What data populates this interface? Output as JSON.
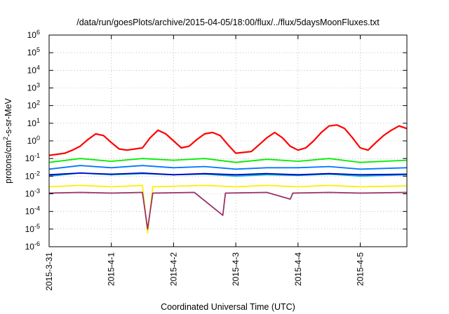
{
  "chart_data": {
    "type": "line",
    "title": "/data/run/goesPlots/archive/2015-04-05/18:00/flux/../flux/5daysMoonFluxes.txt",
    "xlabel": "Coordinated Universal Time (UTC)",
    "ylabel": {
      "base": "protons/cm",
      "sup": "2",
      "rest": "-s-sr-MeV"
    },
    "y_scale": "log",
    "ylim": [
      1e-06,
      1000000.0
    ],
    "y_tick_exponents": [
      -6,
      -5,
      -4,
      -3,
      -2,
      -1,
      0,
      1,
      2,
      3,
      4,
      5,
      6
    ],
    "y_tick_base": "10",
    "xlim": [
      "2015-03-31T00:00",
      "2015-04-05T18:00"
    ],
    "x_tick_labels": [
      "2015-3-31",
      "2015-4-1",
      "2015-4-2",
      "2015-4-3",
      "2015-4-4",
      "2015-4-5"
    ],
    "grid": true,
    "legend": "none",
    "series": [
      {
        "color": "#ff0000",
        "values": [
          [
            "2015-03-31T00:00",
            0.15
          ],
          [
            "2015-03-31T06:00",
            0.2
          ],
          [
            "2015-03-31T09:00",
            0.3
          ],
          [
            "2015-03-31T12:00",
            0.5
          ],
          [
            "2015-03-31T15:00",
            1.2
          ],
          [
            "2015-03-31T18:00",
            2.5
          ],
          [
            "2015-03-31T21:00",
            2.0
          ],
          [
            "2015-04-01T00:00",
            0.8
          ],
          [
            "2015-04-01T03:00",
            0.35
          ],
          [
            "2015-04-01T06:00",
            0.3
          ],
          [
            "2015-04-01T12:00",
            0.4
          ],
          [
            "2015-04-01T15:00",
            1.5
          ],
          [
            "2015-04-01T18:00",
            4.0
          ],
          [
            "2015-04-01T21:00",
            2.5
          ],
          [
            "2015-04-02T00:00",
            1.0
          ],
          [
            "2015-04-02T03:00",
            0.4
          ],
          [
            "2015-04-02T06:00",
            0.5
          ],
          [
            "2015-04-02T09:00",
            1.2
          ],
          [
            "2015-04-02T12:00",
            2.5
          ],
          [
            "2015-04-02T15:00",
            3.0
          ],
          [
            "2015-04-02T18:00",
            2.0
          ],
          [
            "2015-04-02T21:00",
            0.6
          ],
          [
            "2015-04-03T00:00",
            0.2
          ],
          [
            "2015-04-03T06:00",
            0.25
          ],
          [
            "2015-04-03T09:00",
            0.6
          ],
          [
            "2015-04-03T12:00",
            1.5
          ],
          [
            "2015-04-03T15:00",
            3.0
          ],
          [
            "2015-04-03T18:00",
            1.5
          ],
          [
            "2015-04-03T21:00",
            0.5
          ],
          [
            "2015-04-04T00:00",
            0.3
          ],
          [
            "2015-04-04T03:00",
            0.4
          ],
          [
            "2015-04-04T06:00",
            1.0
          ],
          [
            "2015-04-04T09:00",
            3.0
          ],
          [
            "2015-04-04T12:00",
            7.0
          ],
          [
            "2015-04-04T15:00",
            8.0
          ],
          [
            "2015-04-04T18:00",
            5.0
          ],
          [
            "2015-04-04T21:00",
            1.5
          ],
          [
            "2015-04-05T00:00",
            0.4
          ],
          [
            "2015-04-05T03:00",
            0.3
          ],
          [
            "2015-04-05T06:00",
            0.8
          ],
          [
            "2015-04-05T09:00",
            2.0
          ],
          [
            "2015-04-05T12:00",
            4.0
          ],
          [
            "2015-04-05T15:00",
            7.0
          ],
          [
            "2015-04-05T18:00",
            5.0
          ]
        ]
      },
      {
        "color": "#00ee00",
        "values": [
          [
            "2015-03-31T00:00",
            0.06
          ],
          [
            "2015-03-31T12:00",
            0.1
          ],
          [
            "2015-04-01T00:00",
            0.07
          ],
          [
            "2015-04-01T12:00",
            0.1
          ],
          [
            "2015-04-02T00:00",
            0.08
          ],
          [
            "2015-04-02T12:00",
            0.1
          ],
          [
            "2015-04-03T00:00",
            0.06
          ],
          [
            "2015-04-03T12:00",
            0.09
          ],
          [
            "2015-04-04T00:00",
            0.07
          ],
          [
            "2015-04-04T12:00",
            0.1
          ],
          [
            "2015-04-05T00:00",
            0.06
          ],
          [
            "2015-04-05T18:00",
            0.08
          ]
        ]
      },
      {
        "color": "#0077ff",
        "values": [
          [
            "2015-03-31T00:00",
            0.025
          ],
          [
            "2015-03-31T12:00",
            0.04
          ],
          [
            "2015-04-01T00:00",
            0.03
          ],
          [
            "2015-04-01T12:00",
            0.04
          ],
          [
            "2015-04-02T00:00",
            0.03
          ],
          [
            "2015-04-02T12:00",
            0.035
          ],
          [
            "2015-04-03T00:00",
            0.025
          ],
          [
            "2015-04-03T12:00",
            0.03
          ],
          [
            "2015-04-04T00:00",
            0.03
          ],
          [
            "2015-04-04T12:00",
            0.035
          ],
          [
            "2015-04-05T00:00",
            0.025
          ],
          [
            "2015-04-05T18:00",
            0.03
          ]
        ]
      },
      {
        "color": "#00bfbf",
        "values": [
          [
            "2015-03-31T00:00",
            0.01
          ],
          [
            "2015-03-31T12:00",
            0.015
          ],
          [
            "2015-04-01T00:00",
            0.012
          ],
          [
            "2015-04-01T12:00",
            0.014
          ],
          [
            "2015-04-02T00:00",
            0.012
          ],
          [
            "2015-04-02T12:00",
            0.013
          ],
          [
            "2015-04-03T00:00",
            0.01
          ],
          [
            "2015-04-03T12:00",
            0.012
          ],
          [
            "2015-04-04T00:00",
            0.011
          ],
          [
            "2015-04-04T12:00",
            0.013
          ],
          [
            "2015-04-05T00:00",
            0.01
          ],
          [
            "2015-04-05T18:00",
            0.012
          ]
        ]
      },
      {
        "color": "#0000cc",
        "values": [
          [
            "2015-03-31T00:00",
            0.012
          ],
          [
            "2015-03-31T12:00",
            0.015
          ],
          [
            "2015-04-01T00:00",
            0.013
          ],
          [
            "2015-04-01T12:00",
            0.015
          ],
          [
            "2015-04-02T00:00",
            0.012
          ],
          [
            "2015-04-02T12:00",
            0.014
          ],
          [
            "2015-04-03T00:00",
            0.012
          ],
          [
            "2015-04-03T12:00",
            0.014
          ],
          [
            "2015-04-04T00:00",
            0.012
          ],
          [
            "2015-04-04T12:00",
            0.014
          ],
          [
            "2015-04-05T00:00",
            0.012
          ],
          [
            "2015-04-05T18:00",
            0.013
          ]
        ]
      },
      {
        "color": "#ffee00",
        "values": [
          [
            "2015-03-31T00:00",
            0.0025
          ],
          [
            "2015-03-31T12:00",
            0.003
          ],
          [
            "2015-04-01T00:00",
            0.0025
          ],
          [
            "2015-04-01T12:00",
            0.003
          ],
          [
            "2015-04-01T14:00",
            6e-06
          ],
          [
            "2015-04-01T16:00",
            0.0025
          ],
          [
            "2015-04-02T12:00",
            0.003
          ],
          [
            "2015-04-03T00:00",
            0.0025
          ],
          [
            "2015-04-03T12:00",
            0.003
          ],
          [
            "2015-04-04T00:00",
            0.0025
          ],
          [
            "2015-04-04T12:00",
            0.003
          ],
          [
            "2015-04-05T00:00",
            0.0025
          ],
          [
            "2015-04-05T18:00",
            0.0028
          ]
        ]
      },
      {
        "color": "#993366",
        "values": [
          [
            "2015-03-31T00:00",
            0.0011
          ],
          [
            "2015-03-31T12:00",
            0.0012
          ],
          [
            "2015-04-01T00:00",
            0.0011
          ],
          [
            "2015-04-01T12:00",
            0.0012
          ],
          [
            "2015-04-01T14:00",
            1e-05
          ],
          [
            "2015-04-01T16:00",
            0.0011
          ],
          [
            "2015-04-02T08:00",
            0.0012
          ],
          [
            "2015-04-02T19:00",
            6e-05
          ],
          [
            "2015-04-02T20:00",
            0.0011
          ],
          [
            "2015-04-03T12:00",
            0.0012
          ],
          [
            "2015-04-03T21:00",
            0.0005
          ],
          [
            "2015-04-03T22:00",
            0.0011
          ],
          [
            "2015-04-04T12:00",
            0.0012
          ],
          [
            "2015-04-05T00:00",
            0.0011
          ],
          [
            "2015-04-05T18:00",
            0.0012
          ]
        ]
      }
    ]
  }
}
